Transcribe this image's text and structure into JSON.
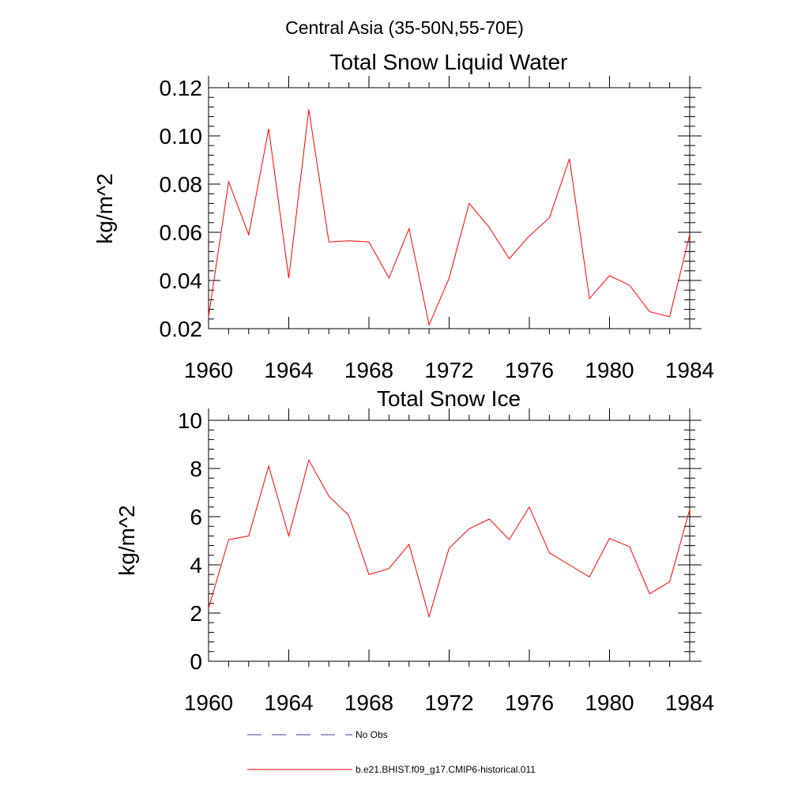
{
  "figure": {
    "supertitle": "Central Asia (35-50N,55-70E)"
  },
  "colors": {
    "series_line": "#ff0000",
    "no_obs_line": "#3b3b8c",
    "axes": "#000000",
    "background": "#ffffff"
  },
  "legend": {
    "entries": [
      {
        "label": "No Obs",
        "style": "dashed",
        "color": "#3b3b8c"
      },
      {
        "label": "b.e21.BHIST.f09_g17.CMIP6-historical.011",
        "style": "solid",
        "color": "#ff0000"
      }
    ]
  },
  "chart_data": [
    {
      "type": "line",
      "title": "Total Snow Liquid Water",
      "xlabel": "",
      "ylabel": "kg/m^2",
      "xlim": [
        1960,
        1984
      ],
      "ylim": [
        0.02,
        0.12
      ],
      "x_ticks": [
        1960,
        1964,
        1968,
        1972,
        1976,
        1980,
        1984
      ],
      "x_tick_labels": [
        "1960",
        "1964",
        "1968",
        "1972",
        "1976",
        "1980",
        "1984"
      ],
      "y_ticks": [
        0.02,
        0.04,
        0.06,
        0.08,
        0.1,
        0.12
      ],
      "y_tick_labels": [
        "0.02",
        "0.04",
        "0.06",
        "0.08",
        "0.10",
        "0.12"
      ],
      "x": [
        1960,
        1961,
        1962,
        1963,
        1964,
        1965,
        1966,
        1967,
        1968,
        1969,
        1970,
        1971,
        1972,
        1973,
        1974,
        1975,
        1976,
        1977,
        1978,
        1979,
        1980,
        1981,
        1982,
        1983,
        1984
      ],
      "series": [
        {
          "name": "b.e21.BHIST.f09_g17.CMIP6-historical.011",
          "values": [
            0.025,
            0.081,
            0.059,
            0.103,
            0.041,
            0.111,
            0.056,
            0.0565,
            0.056,
            0.041,
            0.0615,
            0.0215,
            0.041,
            0.072,
            0.062,
            0.049,
            0.0585,
            0.066,
            0.0905,
            0.0325,
            0.042,
            0.038,
            0.027,
            0.025,
            0.059
          ]
        }
      ]
    },
    {
      "type": "line",
      "title": "Total Snow Ice",
      "xlabel": "",
      "ylabel": "kg/m^2",
      "xlim": [
        1960,
        1984
      ],
      "ylim": [
        0,
        10
      ],
      "x_ticks": [
        1960,
        1964,
        1968,
        1972,
        1976,
        1980,
        1984
      ],
      "x_tick_labels": [
        "1960",
        "1964",
        "1968",
        "1972",
        "1976",
        "1980",
        "1984"
      ],
      "y_ticks": [
        0,
        2,
        4,
        6,
        8,
        10
      ],
      "y_tick_labels": [
        "0",
        "2",
        "4",
        "6",
        "8",
        "10"
      ],
      "x": [
        1960,
        1961,
        1962,
        1963,
        1964,
        1965,
        1966,
        1967,
        1968,
        1969,
        1970,
        1971,
        1972,
        1973,
        1974,
        1975,
        1976,
        1977,
        1978,
        1979,
        1980,
        1981,
        1982,
        1983,
        1984
      ],
      "series": [
        {
          "name": "b.e21.BHIST.f09_g17.CMIP6-historical.011",
          "values": [
            2.2,
            5.05,
            5.2,
            8.1,
            5.2,
            8.35,
            6.85,
            6.05,
            3.6,
            3.85,
            4.85,
            1.85,
            4.7,
            5.5,
            5.9,
            5.05,
            6.4,
            4.5,
            4.0,
            3.5,
            5.1,
            4.75,
            2.8,
            3.3,
            6.3
          ]
        }
      ]
    }
  ]
}
